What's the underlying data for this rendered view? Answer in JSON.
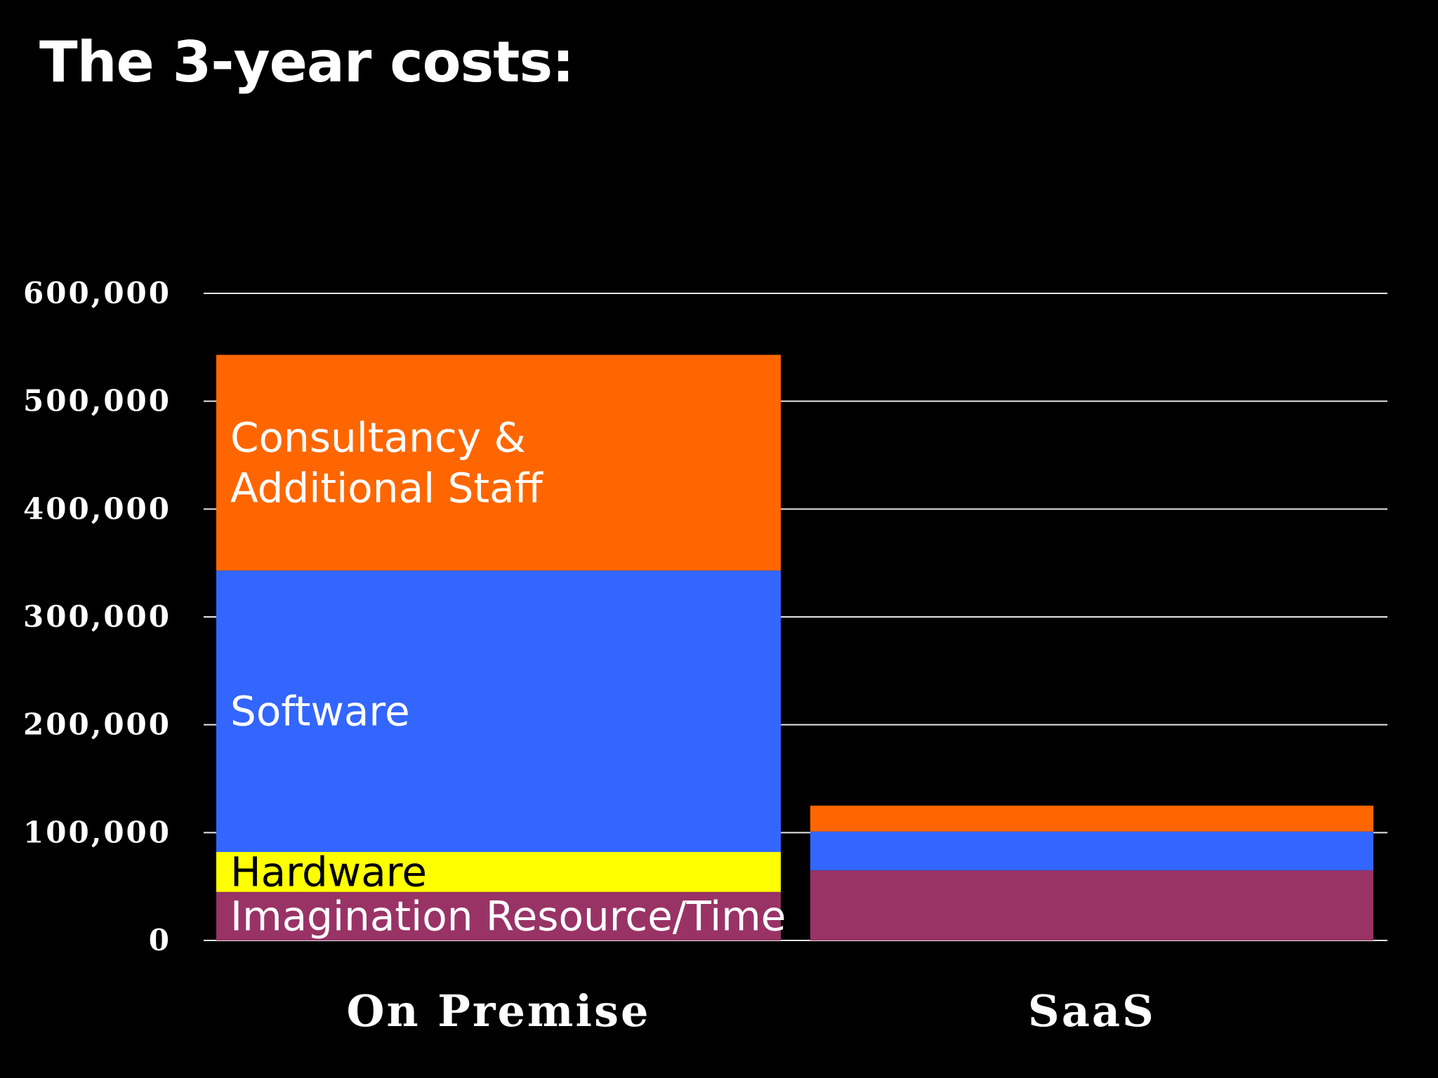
{
  "slide": {
    "title": "The 3-year costs:"
  },
  "colors": {
    "background": "#000000",
    "gridline": "#e6e6e6",
    "text": "#ffffff"
  },
  "chart_data": {
    "type": "bar",
    "stacked": true,
    "title": "",
    "xlabel": "",
    "ylabel": "",
    "ylim": [
      0,
      600000
    ],
    "yticks": [
      0,
      100000,
      200000,
      300000,
      400000,
      500000,
      600000
    ],
    "ytick_labels": [
      "0",
      "100,000",
      "200,000",
      "300,000",
      "400,000",
      "500,000",
      "600,000"
    ],
    "grid": true,
    "categories": [
      "On Premise",
      "SaaS"
    ],
    "series": [
      {
        "name": "Imagination Resource/Time",
        "color": "#993366",
        "label_color": "#ffffff",
        "values": [
          45000,
          65000
        ]
      },
      {
        "name": "Hardware",
        "color": "#ffff00",
        "label_color": "#000000",
        "values": [
          37000,
          0
        ]
      },
      {
        "name": "Software",
        "color": "#3366ff",
        "label_color": "#ffffff",
        "values": [
          261000,
          36000
        ]
      },
      {
        "name": "Consultancy &\nAdditional Staff",
        "color": "#ff6600",
        "label_color": "#ffffff",
        "values": [
          200000,
          24000
        ]
      }
    ],
    "segment_labels_on_category": "On Premise"
  }
}
